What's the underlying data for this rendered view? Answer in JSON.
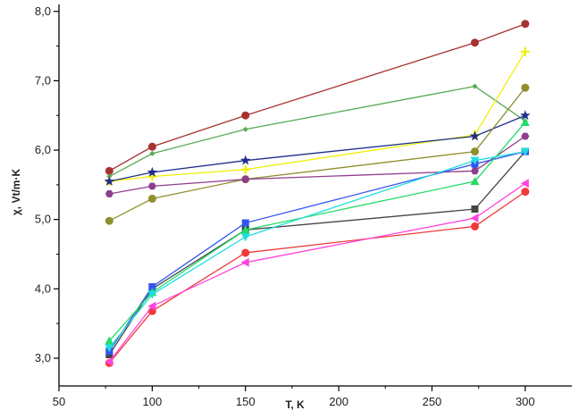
{
  "chart_data": {
    "type": "line",
    "title": "",
    "xlabel": "T, K",
    "ylabel": "χ, Vt/m·K",
    "xlim": [
      50,
      325
    ],
    "ylim": [
      2.6,
      8.1
    ],
    "x_ticks": [
      50,
      100,
      150,
      200,
      250,
      300
    ],
    "x_tick_labels": [
      "50",
      "100",
      "150",
      "200",
      "250",
      "300"
    ],
    "y_ticks": [
      3.0,
      4.0,
      5.0,
      6.0,
      7.0,
      8.0
    ],
    "y_tick_labels": [
      "3,0",
      "4,0",
      "5,0",
      "6,0",
      "7,0",
      "8,0"
    ],
    "grid": false,
    "legend": "none",
    "series": [
      {
        "color": "#a83232",
        "marker": "circle",
        "x": [
          77,
          100,
          150,
          273,
          300
        ],
        "values": [
          5.7,
          6.05,
          6.5,
          7.55,
          7.82
        ]
      },
      {
        "color": "#55aa55",
        "marker": "diamond-small",
        "x": [
          77,
          100,
          150,
          273,
          300
        ],
        "values": [
          5.62,
          5.95,
          6.3,
          6.92,
          6.42
        ]
      },
      {
        "color": "#f0f000",
        "marker": "plus",
        "x": [
          77,
          100,
          150,
          273,
          300
        ],
        "values": [
          5.55,
          5.62,
          5.72,
          6.22,
          7.42
        ]
      },
      {
        "color": "#1f2f8a",
        "marker": "star",
        "x": [
          77,
          100,
          150,
          273,
          300
        ],
        "values": [
          5.55,
          5.68,
          5.85,
          6.2,
          6.5
        ]
      },
      {
        "color": "#8f8f30",
        "marker": "circle",
        "x": [
          77,
          100,
          150,
          273,
          300
        ],
        "values": [
          4.98,
          5.3,
          5.58,
          5.98,
          6.9
        ]
      },
      {
        "color": "#8f3d8f",
        "marker": "hexagon",
        "x": [
          77,
          100,
          150,
          273,
          300
        ],
        "values": [
          5.37,
          5.48,
          5.58,
          5.7,
          6.2
        ]
      },
      {
        "color": "#444444",
        "marker": "square",
        "x": [
          77,
          100,
          150,
          273,
          300
        ],
        "values": [
          3.05,
          4.0,
          4.85,
          5.15,
          5.98
        ]
      },
      {
        "color": "#3355ee",
        "marker": "square",
        "x": [
          77,
          100,
          150,
          273,
          300
        ],
        "values": [
          3.1,
          4.03,
          4.95,
          5.8,
          5.98
        ]
      },
      {
        "color": "#22dd66",
        "marker": "triangle-up",
        "x": [
          77,
          100,
          150,
          273,
          300
        ],
        "values": [
          3.25,
          3.95,
          4.85,
          5.55,
          6.4
        ]
      },
      {
        "color": "#22dddd",
        "marker": "triangle-down",
        "x": [
          77,
          100,
          150,
          273,
          300
        ],
        "values": [
          3.15,
          3.92,
          4.75,
          5.85,
          5.98
        ]
      },
      {
        "color": "#f03a3a",
        "marker": "circle",
        "x": [
          77,
          100,
          150,
          273,
          300
        ],
        "values": [
          2.93,
          3.68,
          4.52,
          4.9,
          5.4
        ]
      },
      {
        "color": "#ff44dd",
        "marker": "triangle-left",
        "x": [
          77,
          100,
          150,
          273,
          300
        ],
        "values": [
          2.95,
          3.75,
          4.38,
          5.02,
          5.52
        ]
      }
    ]
  }
}
